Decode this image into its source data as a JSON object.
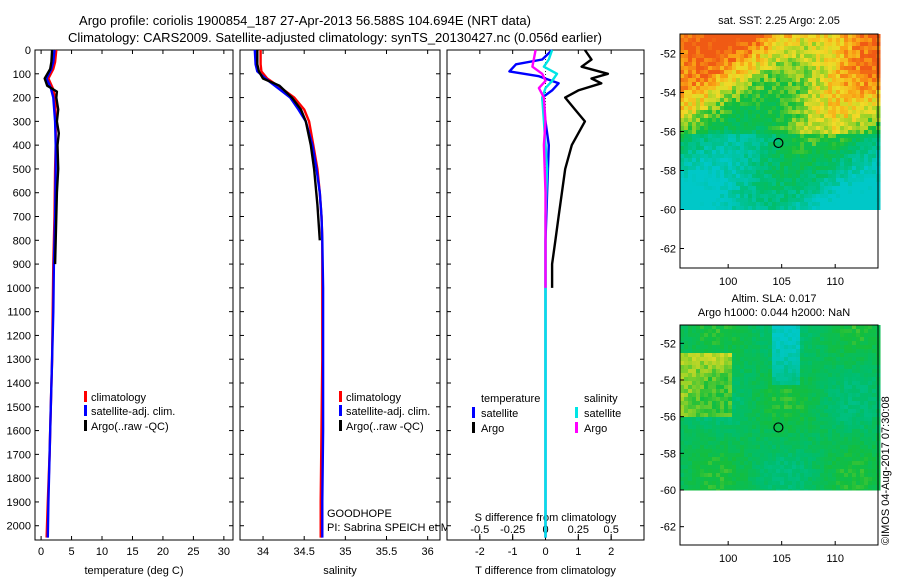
{
  "header": {
    "title_line1": "Argo profile: coriolis 1900854_187 27-Apr-2013 56.588S 104.694E (NRT data)",
    "title_line2": "Climatology: CARS2009. Satellite-adjusted climatology: synTS_20130427.nc (0.056d earlier)"
  },
  "colors": {
    "climatology": "#ff0000",
    "satellite": "#0000ff",
    "argo": "#000000",
    "salinity_sat": "#00e5e5",
    "salinity_argo": "#ff00ff"
  },
  "credit": "©IMOS 04-Aug-2017 07:30:08",
  "chart_data": [
    {
      "type": "line",
      "id": "temperature",
      "xlabel": "temperature (deg C)",
      "xlim": [
        -1,
        31.5
      ],
      "xticks": [
        0,
        5,
        10,
        15,
        20,
        25,
        30
      ],
      "ylim": [
        2060,
        0
      ],
      "yticks": [
        0,
        100,
        200,
        300,
        400,
        500,
        600,
        700,
        800,
        900,
        1000,
        1100,
        1200,
        1300,
        1400,
        1500,
        1600,
        1700,
        1800,
        1900,
        2000
      ],
      "legend": [
        "climatology",
        "satellite-adj. clim.",
        "Argo(..raw -QC)"
      ],
      "series": [
        {
          "name": "climatology",
          "color": "#ff0000",
          "x": [
            2.5,
            2.3,
            2.0,
            1.2,
            1.9,
            2.3,
            2.4,
            2.4,
            2.3,
            2.2,
            2.1,
            2.0,
            1.9,
            1.8,
            1.6,
            1.4,
            1.1,
            0.9
          ],
          "y": [
            0,
            50,
            80,
            120,
            160,
            200,
            300,
            400,
            500,
            700,
            800,
            900,
            1100,
            1300,
            1500,
            1700,
            1900,
            2050
          ]
        },
        {
          "name": "satellite-adj. clim.",
          "color": "#0000ff",
          "x": [
            2.2,
            2.0,
            1.7,
            0.9,
            1.6,
            2.0,
            2.3,
            2.4,
            2.4,
            2.3,
            2.2,
            2.1,
            2.0,
            1.8,
            1.6,
            1.4,
            1.2,
            1.1
          ],
          "y": [
            0,
            50,
            80,
            120,
            160,
            200,
            300,
            400,
            500,
            700,
            800,
            900,
            1100,
            1300,
            1500,
            1700,
            1900,
            2050
          ]
        },
        {
          "name": "Argo(..raw -QC)",
          "color": "#000000",
          "x": [
            1.8,
            1.7,
            1.5,
            0.6,
            1.0,
            2.6,
            2.5,
            2.8,
            2.6,
            2.9,
            2.7,
            2.8,
            2.6,
            2.5,
            2.4,
            2.3
          ],
          "y": [
            0,
            50,
            80,
            120,
            150,
            175,
            200,
            250,
            300,
            350,
            400,
            500,
            600,
            700,
            800,
            900
          ]
        }
      ]
    },
    {
      "type": "line",
      "id": "salinity",
      "xlabel": "salinity",
      "xlim": [
        33.72,
        36.15
      ],
      "xticks": [
        34,
        34.5,
        35,
        35.5,
        36
      ],
      "ylim": [
        2060,
        0
      ],
      "legend": [
        "climatology",
        "satellite-adj. clim.",
        "Argo(..raw -QC)"
      ],
      "annotations": [
        "GOODHOPE",
        "PI: Sabrina SPEICH et Michel ARHAN"
      ],
      "series": [
        {
          "name": "climatology",
          "color": "#ff0000",
          "x": [
            33.97,
            33.97,
            33.98,
            34.05,
            34.22,
            34.38,
            34.5,
            34.56,
            34.61,
            34.66,
            34.69,
            34.71,
            34.72,
            34.72,
            34.72,
            34.71,
            34.7,
            34.7
          ],
          "y": [
            0,
            60,
            90,
            120,
            160,
            200,
            250,
            300,
            400,
            500,
            600,
            700,
            800,
            1000,
            1300,
            1600,
            1900,
            2050
          ]
        },
        {
          "name": "satellite-adj. clim.",
          "color": "#0000ff",
          "x": [
            33.9,
            33.91,
            33.93,
            34.03,
            34.18,
            34.33,
            34.43,
            34.52,
            34.6,
            34.65,
            34.69,
            34.71,
            34.72,
            34.73,
            34.73,
            34.73,
            34.72,
            34.72
          ],
          "y": [
            0,
            60,
            90,
            120,
            160,
            200,
            250,
            300,
            400,
            500,
            600,
            700,
            800,
            1000,
            1300,
            1600,
            1900,
            2050
          ]
        },
        {
          "name": "Argo(..raw -QC)",
          "color": "#000000",
          "x": [
            33.93,
            33.93,
            33.95,
            34.0,
            34.2,
            34.35,
            34.46,
            34.52,
            34.58,
            34.62,
            34.66,
            34.69
          ],
          "y": [
            0,
            60,
            90,
            120,
            150,
            200,
            250,
            300,
            400,
            500,
            650,
            800
          ]
        }
      ]
    },
    {
      "type": "line",
      "id": "difference",
      "xlabel": "T difference from climatology",
      "xlabel_top": "S difference from climatology",
      "xlim": [
        -3,
        3
      ],
      "xticks": [
        -2,
        -1,
        0,
        1,
        2
      ],
      "xticks_top": [
        -0.5,
        -0.25,
        0,
        0.25,
        0.5
      ],
      "xtick_top_labels": [
        "-0.5",
        "-0.25",
        "0",
        "0.25",
        "0.5"
      ],
      "ylim": [
        2060,
        0
      ],
      "legend_headers": [
        "temperature",
        "salinity"
      ],
      "legend": [
        "satellite",
        "Argo",
        "satellite",
        "Argo"
      ],
      "series": [
        {
          "name": "T satellite",
          "color": "#0000ff",
          "x": [
            0.2,
            -0.1,
            -0.9,
            -1.1,
            -0.2,
            0.4,
            0.2,
            -0.1,
            0.0,
            0.1,
            0.05,
            0.0,
            0.0,
            0.0,
            0.0,
            0.0,
            0.0,
            0.0
          ],
          "y": [
            0,
            40,
            60,
            90,
            110,
            140,
            170,
            200,
            300,
            400,
            600,
            800,
            1000,
            1200,
            1400,
            1600,
            1800,
            2050
          ]
        },
        {
          "name": "T Argo",
          "color": "#000000",
          "x": [
            1.2,
            1.4,
            1.1,
            1.9,
            1.4,
            1.7,
            1.0,
            0.6,
            0.9,
            1.2,
            1.0,
            0.8,
            0.6,
            0.5,
            0.4,
            0.3,
            0.2,
            0.2
          ],
          "y": [
            0,
            40,
            70,
            100,
            120,
            140,
            170,
            200,
            250,
            300,
            350,
            400,
            500,
            600,
            700,
            800,
            900,
            1000
          ]
        },
        {
          "name": "S satellite",
          "color": "#00e5e5",
          "x": [
            0.2,
            0.1,
            -0.05,
            0.35,
            0.2,
            0.0,
            -0.1,
            -0.05,
            0.0,
            0.05,
            0.0,
            0.0,
            0.0,
            0.0,
            0.0,
            0.0,
            0.0,
            0.0
          ],
          "y": [
            0,
            40,
            70,
            100,
            130,
            160,
            200,
            300,
            400,
            500,
            700,
            900,
            1100,
            1300,
            1500,
            1700,
            1900,
            2050
          ]
        },
        {
          "name": "S Argo",
          "color": "#ff00ff",
          "x": [
            -0.3,
            -0.4,
            -0.1,
            0.0,
            -0.2,
            -0.05,
            0.0,
            -0.05,
            0.0,
            0.0,
            0.0,
            0.0
          ],
          "y": [
            0,
            70,
            100,
            130,
            160,
            200,
            300,
            400,
            600,
            800,
            900,
            1000
          ]
        }
      ]
    },
    {
      "type": "heatmap",
      "id": "sst_map",
      "title": "sat. SST: 2.25 Argo: 2.05",
      "xlim": [
        95.5,
        114
      ],
      "ylim": [
        -63,
        -51
      ],
      "xticks": [
        100,
        105,
        110
      ],
      "yticks": [
        -52,
        -54,
        -56,
        -58,
        -60,
        -62
      ],
      "ytick_labels": [
        "-52",
        "-54",
        "-56",
        "-58",
        "-60",
        "-62"
      ],
      "marker": {
        "lon": 104.694,
        "lat": -56.588
      }
    },
    {
      "type": "heatmap",
      "id": "sla_map",
      "title_line1": "Altim. SLA: 0.017",
      "title_line2": "Argo h1000: 0.044 h2000: NaN",
      "xlim": [
        95.5,
        114
      ],
      "ylim": [
        -63,
        -51
      ],
      "xticks": [
        100,
        105,
        110
      ],
      "yticks": [
        -52,
        -54,
        -56,
        -58,
        -60,
        -62
      ],
      "ytick_labels": [
        "-52",
        "-54",
        "-56",
        "-58",
        "-60",
        "-62"
      ],
      "marker": {
        "lon": 104.694,
        "lat": -56.588
      }
    }
  ]
}
